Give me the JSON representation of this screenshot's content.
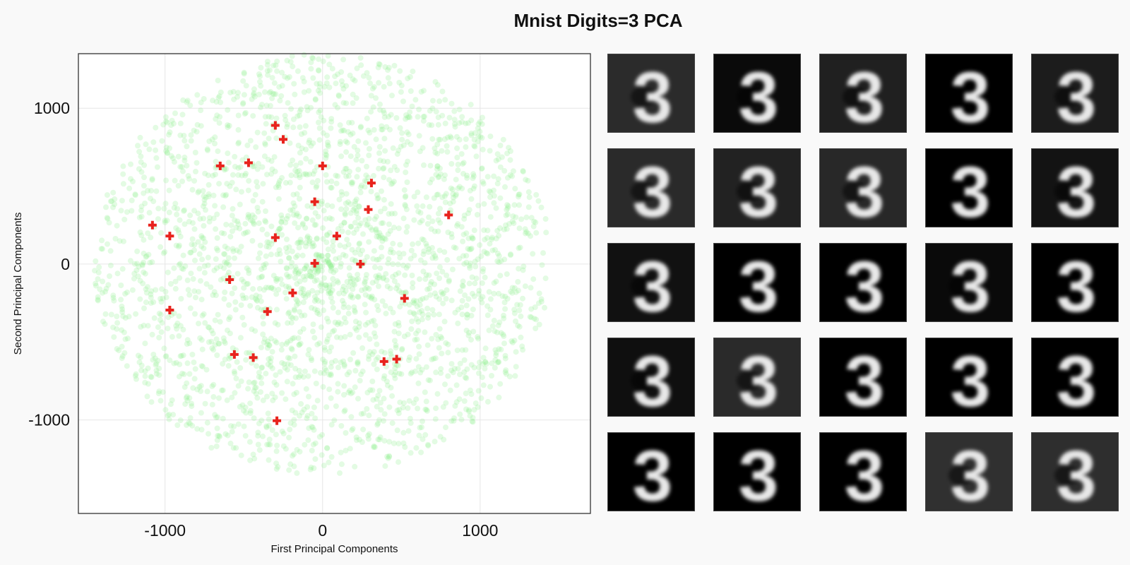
{
  "title": "Mnist Digits=3 PCA",
  "chart_data": {
    "type": "scatter",
    "xlabel": "First Principal  Components",
    "ylabel": "Second Principal  Components",
    "xlim": [
      -1550,
      1700
    ],
    "ylim": [
      -1600,
      1350
    ],
    "xticks": [
      -1000,
      0,
      1000
    ],
    "yticks": [
      -1000,
      0,
      1000
    ],
    "xtick_labels": [
      "-1000",
      "0",
      "1000"
    ],
    "ytick_labels": [
      "-1000",
      "0",
      "1000"
    ],
    "grid": true,
    "series": [
      {
        "marker": "circle",
        "color": "#90ee90",
        "opacity": 0.25,
        "distribution": {
          "count": 2600,
          "center": [
            0,
            0
          ],
          "radius_x": 1450,
          "radius_y": 1350
        }
      },
      {
        "marker": "cross",
        "color": "#e8231d",
        "points": [
          [
            -300,
            890
          ],
          [
            -250,
            800
          ],
          [
            -650,
            630
          ],
          [
            -470,
            650
          ],
          [
            0,
            630
          ],
          [
            310,
            520
          ],
          [
            -50,
            400
          ],
          [
            290,
            350
          ],
          [
            800,
            315
          ],
          [
            -1080,
            250
          ],
          [
            -970,
            180
          ],
          [
            -300,
            170
          ],
          [
            90,
            180
          ],
          [
            -50,
            5
          ],
          [
            240,
            0
          ],
          [
            -590,
            -100
          ],
          [
            -190,
            -185
          ],
          [
            520,
            -220
          ],
          [
            -970,
            -295
          ],
          [
            -350,
            -305
          ],
          [
            -560,
            -580
          ],
          [
            -440,
            -600
          ],
          [
            470,
            -610
          ],
          [
            390,
            -625
          ],
          [
            -290,
            -1005
          ]
        ]
      }
    ]
  },
  "digit_grid": {
    "rows": 5,
    "cols": 5,
    "label": "3",
    "backgrounds": [
      "#2b2b2b",
      "#0a0a0a",
      "#202020",
      "#000000",
      "#1c1c1c",
      "#2a2a2a",
      "#222222",
      "#282828",
      "#000000",
      "#131313",
      "#111111",
      "#000000",
      "#000000",
      "#0a0a0a",
      "#000000",
      "#0f0f0f",
      "#2a2a2a",
      "#000000",
      "#000000",
      "#000000",
      "#000000",
      "#000000",
      "#000000",
      "#303030",
      "#2e2e2e"
    ]
  }
}
